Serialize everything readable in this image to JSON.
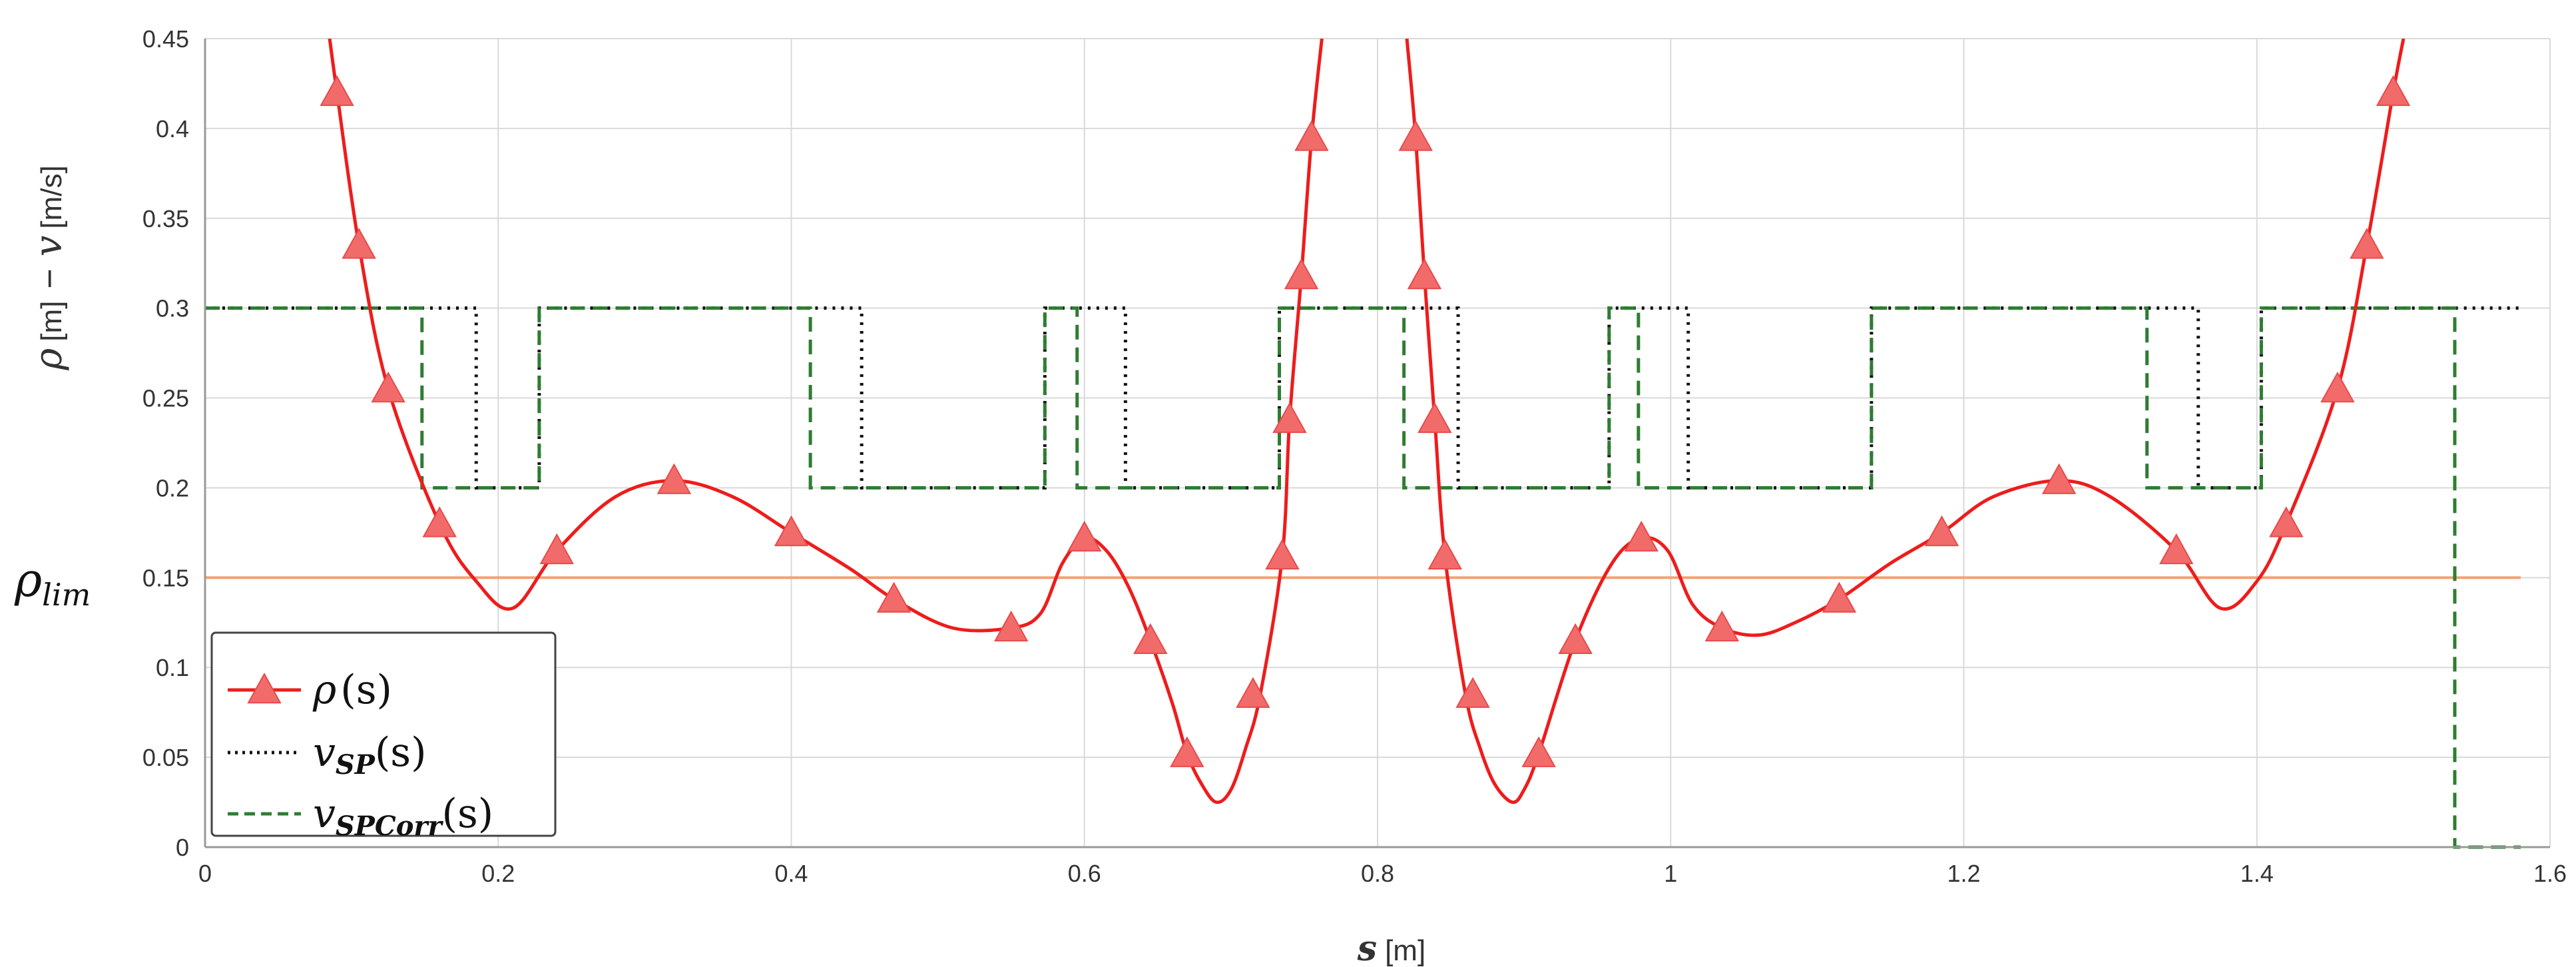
{
  "chart_data": {
    "type": "line",
    "xlabel": {
      "var": "s",
      "unit": "[m]"
    },
    "ylabel": {
      "rho": "ρ",
      "rho_unit": "[m]",
      "dash": "−",
      "v": "v",
      "v_unit": "[m/s]"
    },
    "xlim": [
      0,
      1.6
    ],
    "ylim": [
      0,
      0.45
    ],
    "x_ticks": [
      "0",
      "0.2",
      "0.4",
      "0.6",
      "0.8",
      "1",
      "1.2",
      "1.4",
      "1.6"
    ],
    "y_ticks": [
      "0",
      "0.05",
      "0.1",
      "0.15",
      "0.2",
      "0.25",
      "0.3",
      "0.35",
      "0.4",
      "0.45"
    ],
    "grid": true,
    "legend_position": "bottom-left",
    "annotations": [
      {
        "text_main": "ρ",
        "text_sub": "lim",
        "y": 0.15
      }
    ],
    "reference_lines": [
      {
        "y": 0.15,
        "color": "#f4a070"
      }
    ],
    "series": [
      {
        "name": "ρ(s)",
        "legend": {
          "main": "ρ",
          "sub": "",
          "arg": "(s)"
        },
        "color": "#ee1c1c",
        "marker_color": "#f26b6b",
        "style": "solid",
        "points": [
          [
            0.085,
            0.45
          ],
          [
            0.09,
            0.42
          ],
          [
            0.105,
            0.335
          ],
          [
            0.125,
            0.255
          ],
          [
            0.16,
            0.18
          ],
          [
            0.185,
            0.148
          ],
          [
            0.21,
            0.133
          ],
          [
            0.24,
            0.165
          ],
          [
            0.28,
            0.195
          ],
          [
            0.32,
            0.204
          ],
          [
            0.36,
            0.195
          ],
          [
            0.4,
            0.175
          ],
          [
            0.44,
            0.155
          ],
          [
            0.47,
            0.138
          ],
          [
            0.51,
            0.122
          ],
          [
            0.55,
            0.122
          ],
          [
            0.57,
            0.13
          ],
          [
            0.585,
            0.158
          ],
          [
            0.6,
            0.172
          ],
          [
            0.615,
            0.165
          ],
          [
            0.63,
            0.145
          ],
          [
            0.645,
            0.115
          ],
          [
            0.66,
            0.08
          ],
          [
            0.67,
            0.052
          ],
          [
            0.68,
            0.035
          ],
          [
            0.69,
            0.025
          ],
          [
            0.7,
            0.032
          ],
          [
            0.71,
            0.055
          ],
          [
            0.72,
            0.085
          ],
          [
            0.735,
            0.162
          ],
          [
            0.74,
            0.238
          ],
          [
            0.748,
            0.318
          ],
          [
            0.755,
            0.395
          ],
          [
            0.762,
            0.45
          ]
        ],
        "points2": [
          [
            0.82,
            0.45
          ],
          [
            0.826,
            0.395
          ],
          [
            0.832,
            0.318
          ],
          [
            0.839,
            0.238
          ],
          [
            0.846,
            0.162
          ],
          [
            0.86,
            0.085
          ],
          [
            0.87,
            0.055
          ],
          [
            0.88,
            0.035
          ],
          [
            0.892,
            0.025
          ],
          [
            0.9,
            0.032
          ],
          [
            0.91,
            0.052
          ],
          [
            0.935,
            0.115
          ],
          [
            0.96,
            0.158
          ],
          [
            0.98,
            0.172
          ],
          [
            0.998,
            0.165
          ],
          [
            1.015,
            0.135
          ],
          [
            1.035,
            0.122
          ],
          [
            1.06,
            0.118
          ],
          [
            1.085,
            0.125
          ],
          [
            1.115,
            0.138
          ],
          [
            1.15,
            0.158
          ],
          [
            1.185,
            0.175
          ],
          [
            1.22,
            0.195
          ],
          [
            1.265,
            0.204
          ],
          [
            1.3,
            0.195
          ],
          [
            1.345,
            0.165
          ],
          [
            1.375,
            0.133
          ],
          [
            1.4,
            0.148
          ],
          [
            1.42,
            0.18
          ],
          [
            1.455,
            0.255
          ],
          [
            1.475,
            0.335
          ],
          [
            1.493,
            0.42
          ],
          [
            1.5,
            0.45
          ]
        ],
        "markers": [
          [
            0.09,
            0.42
          ],
          [
            0.105,
            0.335
          ],
          [
            0.125,
            0.255
          ],
          [
            0.16,
            0.18
          ],
          [
            0.24,
            0.165
          ],
          [
            0.32,
            0.204
          ],
          [
            0.4,
            0.175
          ],
          [
            0.47,
            0.138
          ],
          [
            0.55,
            0.122
          ],
          [
            0.6,
            0.172
          ],
          [
            0.645,
            0.115
          ],
          [
            0.67,
            0.052
          ],
          [
            0.715,
            0.085
          ],
          [
            0.735,
            0.162
          ],
          [
            0.74,
            0.238
          ],
          [
            0.748,
            0.318
          ],
          [
            0.755,
            0.395
          ],
          [
            0.826,
            0.395
          ],
          [
            0.832,
            0.318
          ],
          [
            0.839,
            0.238
          ],
          [
            0.846,
            0.162
          ],
          [
            0.865,
            0.085
          ],
          [
            0.91,
            0.052
          ],
          [
            0.935,
            0.115
          ],
          [
            0.98,
            0.172
          ],
          [
            1.035,
            0.122
          ],
          [
            1.115,
            0.138
          ],
          [
            1.185,
            0.175
          ],
          [
            1.265,
            0.204
          ],
          [
            1.345,
            0.165
          ],
          [
            1.42,
            0.18
          ],
          [
            1.455,
            0.255
          ],
          [
            1.475,
            0.335
          ],
          [
            1.493,
            0.42
          ]
        ]
      },
      {
        "name": "vSP(s)",
        "legend": {
          "main": "v",
          "sub": "SP",
          "arg": "(s)"
        },
        "color": "#111111",
        "style": "dotted",
        "steps": [
          [
            0,
            0.3
          ],
          [
            0.185,
            0.3
          ],
          [
            0.185,
            0.2
          ],
          [
            0.228,
            0.2
          ],
          [
            0.228,
            0.3
          ],
          [
            0.448,
            0.3
          ],
          [
            0.448,
            0.2
          ],
          [
            0.573,
            0.2
          ],
          [
            0.573,
            0.3
          ],
          [
            0.628,
            0.3
          ],
          [
            0.628,
            0.2
          ],
          [
            0.733,
            0.2
          ],
          [
            0.733,
            0.3
          ],
          [
            0.855,
            0.3
          ],
          [
            0.855,
            0.2
          ],
          [
            0.958,
            0.2
          ],
          [
            0.958,
            0.3
          ],
          [
            1.012,
            0.3
          ],
          [
            1.012,
            0.2
          ],
          [
            1.137,
            0.2
          ],
          [
            1.137,
            0.3
          ],
          [
            1.36,
            0.3
          ],
          [
            1.36,
            0.2
          ],
          [
            1.403,
            0.2
          ],
          [
            1.403,
            0.3
          ],
          [
            1.58,
            0.3
          ]
        ]
      },
      {
        "name": "vSPCorr(s)",
        "legend": {
          "main": "v",
          "sub": "SPCorr",
          "arg": "(s)"
        },
        "color": "#2e7d32",
        "style": "dashed",
        "steps": [
          [
            0,
            0.3
          ],
          [
            0.148,
            0.3
          ],
          [
            0.148,
            0.2
          ],
          [
            0.228,
            0.2
          ],
          [
            0.228,
            0.3
          ],
          [
            0.413,
            0.3
          ],
          [
            0.413,
            0.2
          ],
          [
            0.573,
            0.2
          ],
          [
            0.573,
            0.3
          ],
          [
            0.595,
            0.3
          ],
          [
            0.595,
            0.2
          ],
          [
            0.733,
            0.2
          ],
          [
            0.733,
            0.3
          ],
          [
            0.818,
            0.3
          ],
          [
            0.818,
            0.2
          ],
          [
            0.958,
            0.2
          ],
          [
            0.958,
            0.3
          ],
          [
            0.978,
            0.3
          ],
          [
            0.978,
            0.2
          ],
          [
            1.137,
            0.2
          ],
          [
            1.137,
            0.3
          ],
          [
            1.325,
            0.3
          ],
          [
            1.325,
            0.2
          ],
          [
            1.403,
            0.2
          ],
          [
            1.403,
            0.3
          ],
          [
            1.535,
            0.3
          ],
          [
            1.535,
            0.0
          ],
          [
            1.58,
            0.0
          ]
        ]
      }
    ]
  }
}
